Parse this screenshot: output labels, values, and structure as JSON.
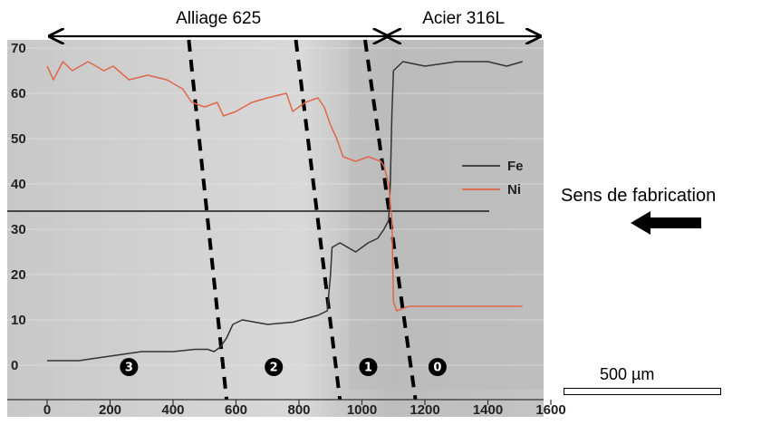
{
  "chart_data": {
    "type": "line",
    "x_unit": "µm",
    "xlim": [
      0,
      1700
    ],
    "ylim": [
      -7,
      72
    ],
    "x_ticks": [
      0,
      200,
      400,
      600,
      800,
      1000,
      1200,
      1400,
      1600
    ],
    "y_ticks": [
      0,
      10,
      20,
      30,
      40,
      50,
      60,
      70
    ],
    "colors": {
      "Fe": "#333333",
      "Ni": "#e0674a"
    },
    "series": [
      {
        "name": "Fe",
        "points": [
          [
            0,
            1
          ],
          [
            100,
            1
          ],
          [
            200,
            2
          ],
          [
            250,
            2.5
          ],
          [
            300,
            3
          ],
          [
            400,
            3
          ],
          [
            470,
            3.5
          ],
          [
            510,
            3.5
          ],
          [
            530,
            3
          ],
          [
            550,
            4
          ],
          [
            570,
            6
          ],
          [
            590,
            9
          ],
          [
            620,
            10
          ],
          [
            700,
            9
          ],
          [
            780,
            9.5
          ],
          [
            860,
            11
          ],
          [
            890,
            12
          ],
          [
            900,
            20
          ],
          [
            905,
            26
          ],
          [
            930,
            27
          ],
          [
            980,
            25
          ],
          [
            1020,
            27
          ],
          [
            1050,
            28
          ],
          [
            1070,
            30
          ],
          [
            1085,
            32
          ],
          [
            1090,
            40
          ],
          [
            1095,
            55
          ],
          [
            1100,
            65
          ],
          [
            1130,
            67
          ],
          [
            1200,
            66
          ],
          [
            1300,
            67
          ],
          [
            1400,
            67
          ],
          [
            1460,
            66
          ],
          [
            1510,
            67
          ]
        ]
      },
      {
        "name": "Ni",
        "points": [
          [
            0,
            66
          ],
          [
            20,
            63
          ],
          [
            50,
            67
          ],
          [
            80,
            65
          ],
          [
            130,
            67
          ],
          [
            180,
            65
          ],
          [
            210,
            66
          ],
          [
            260,
            63
          ],
          [
            320,
            64
          ],
          [
            380,
            63
          ],
          [
            430,
            61
          ],
          [
            460,
            58
          ],
          [
            500,
            57
          ],
          [
            540,
            58
          ],
          [
            560,
            55
          ],
          [
            600,
            56
          ],
          [
            650,
            58
          ],
          [
            700,
            59
          ],
          [
            760,
            60
          ],
          [
            780,
            56
          ],
          [
            820,
            58
          ],
          [
            860,
            59
          ],
          [
            880,
            57
          ],
          [
            890,
            55
          ],
          [
            900,
            53
          ],
          [
            920,
            50
          ],
          [
            940,
            46
          ],
          [
            980,
            45
          ],
          [
            1020,
            46
          ],
          [
            1060,
            45
          ],
          [
            1070,
            44
          ],
          [
            1085,
            40
          ],
          [
            1095,
            32
          ],
          [
            1100,
            14
          ],
          [
            1110,
            12
          ],
          [
            1150,
            13
          ],
          [
            1300,
            13
          ],
          [
            1400,
            13
          ],
          [
            1510,
            13
          ]
        ]
      }
    ],
    "legend": [
      "Fe",
      "Ni"
    ],
    "legend_position": "right",
    "horizontal_line_y": 34,
    "regions": [
      {
        "label": "Alliage 625",
        "x_start": 0,
        "x_end": 1080
      },
      {
        "label": "Acier 316L",
        "x_start": 1080,
        "x_end": 1640
      }
    ],
    "boundaries": [
      {
        "top_x": 450,
        "bottom_x": 570
      },
      {
        "top_x": 790,
        "bottom_x": 930
      },
      {
        "top_x": 1010,
        "bottom_x": 1170
      }
    ],
    "zones": [
      {
        "label": "3",
        "x": 260
      },
      {
        "label": "2",
        "x": 720
      },
      {
        "label": "1",
        "x": 1020
      },
      {
        "label": "0",
        "x": 1240
      }
    ]
  },
  "annotations": {
    "direction_text": "Sens de fabrication",
    "direction_icon": "left-arrow-icon",
    "scale_bar_text": "500 µm"
  }
}
